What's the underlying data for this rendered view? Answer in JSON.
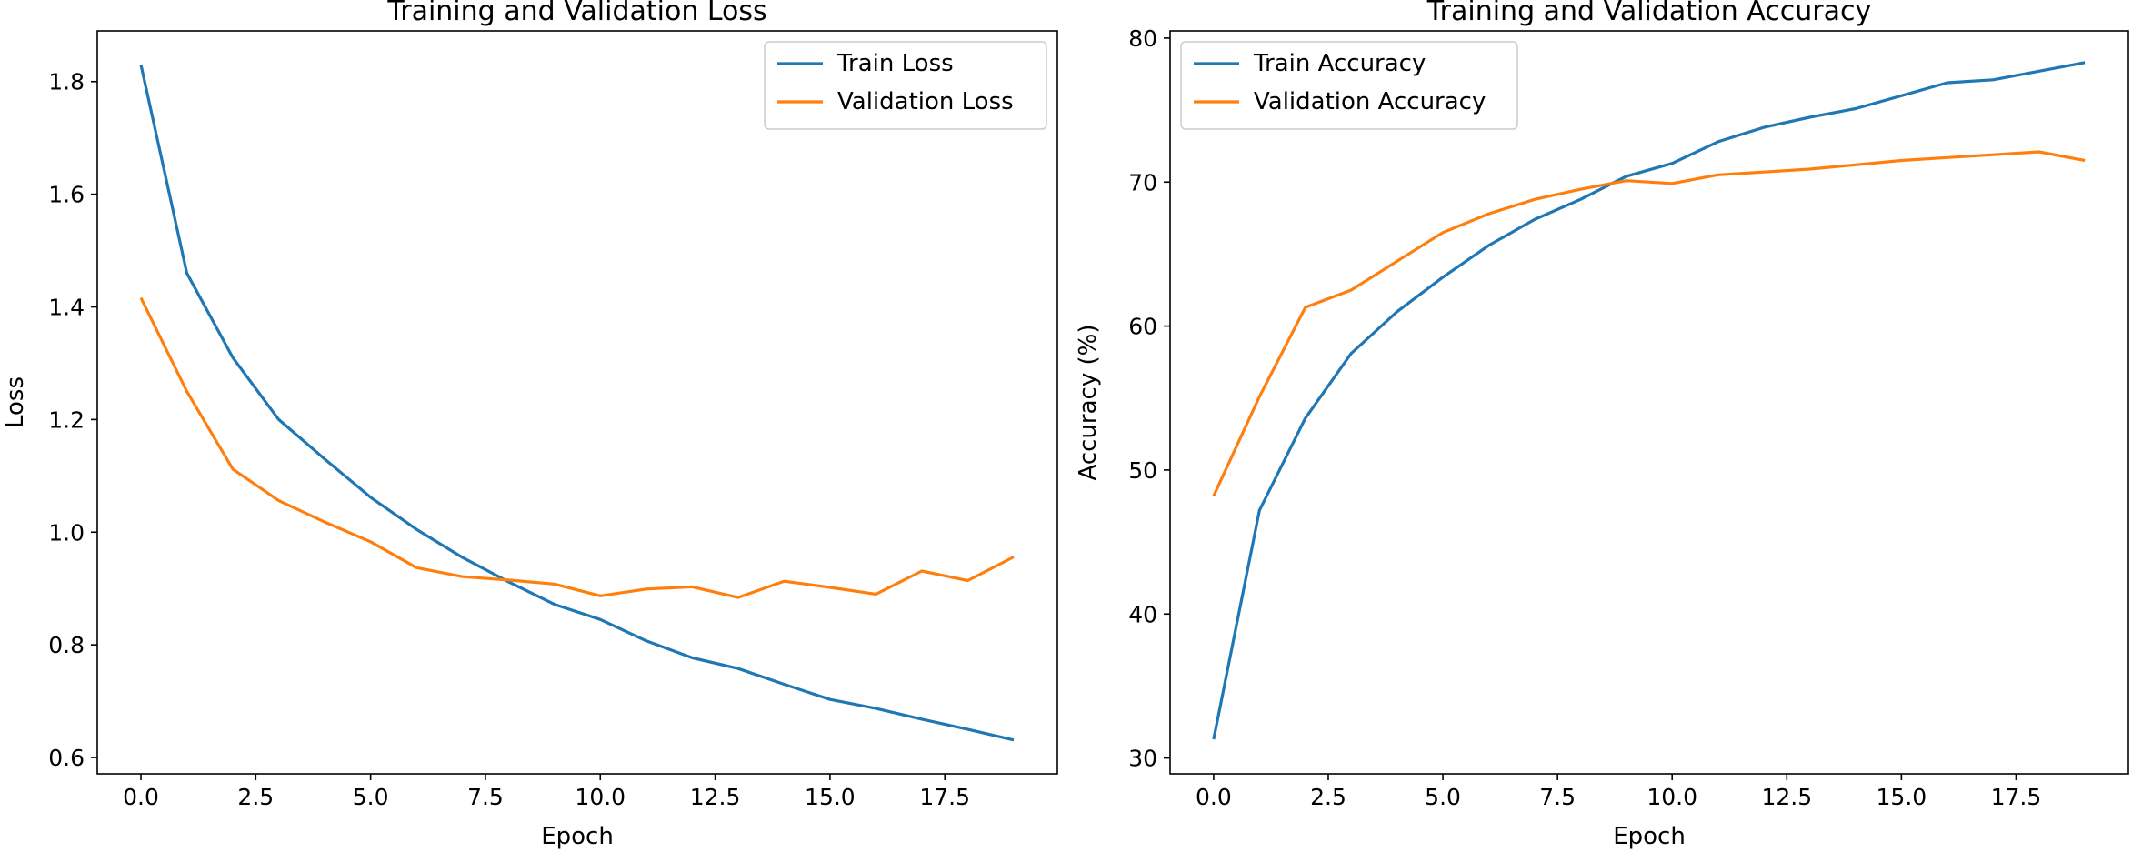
{
  "chart_data": [
    {
      "type": "line",
      "title": "Training and Validation Loss",
      "xlabel": "Epoch",
      "ylabel": "Loss",
      "xlim": [
        -0.95,
        19.95
      ],
      "ylim": [
        0.571,
        1.89
      ],
      "xticks": [
        0.0,
        2.5,
        5.0,
        7.5,
        10.0,
        12.5,
        15.0,
        17.5
      ],
      "xtick_labels": [
        "0.0",
        "2.5",
        "5.0",
        "7.5",
        "10.0",
        "12.5",
        "15.0",
        "17.5"
      ],
      "yticks": [
        0.6,
        0.8,
        1.0,
        1.2,
        1.4,
        1.6,
        1.8
      ],
      "ytick_labels": [
        "0.6",
        "0.8",
        "1.0",
        "1.2",
        "1.4",
        "1.6",
        "1.8"
      ],
      "grid": false,
      "legend_position": "upper right",
      "x": [
        0,
        1,
        2,
        3,
        4,
        5,
        6,
        7,
        8,
        9,
        10,
        11,
        12,
        13,
        14,
        15,
        16,
        17,
        18,
        19
      ],
      "series": [
        {
          "name": "Train Loss",
          "color": "#1f77b4",
          "values": [
            1.83,
            1.46,
            1.31,
            1.2,
            1.13,
            1.062,
            1.005,
            0.955,
            0.912,
            0.872,
            0.845,
            0.807,
            0.777,
            0.758,
            0.73,
            0.703,
            0.687,
            0.668,
            0.65,
            0.631
          ]
        },
        {
          "name": "Validation Loss",
          "color": "#ff7f0e",
          "values": [
            1.416,
            1.25,
            1.112,
            1.056,
            1.018,
            0.983,
            0.937,
            0.921,
            0.915,
            0.908,
            0.887,
            0.899,
            0.903,
            0.884,
            0.913,
            0.902,
            0.89,
            0.931,
            0.914,
            0.956
          ]
        }
      ]
    },
    {
      "type": "line",
      "title": "Training and Validation Accuracy",
      "xlabel": "Epoch",
      "ylabel": "Accuracy (%)",
      "xlim": [
        -0.95,
        19.95
      ],
      "ylim": [
        28.9,
        80.5
      ],
      "xticks": [
        0.0,
        2.5,
        5.0,
        7.5,
        10.0,
        12.5,
        15.0,
        17.5
      ],
      "xtick_labels": [
        "0.0",
        "2.5",
        "5.0",
        "7.5",
        "10.0",
        "12.5",
        "15.0",
        "17.5"
      ],
      "yticks": [
        30,
        40,
        50,
        60,
        70,
        80
      ],
      "ytick_labels": [
        "30",
        "40",
        "50",
        "60",
        "70",
        "80"
      ],
      "grid": false,
      "legend_position": "upper left",
      "x": [
        0,
        1,
        2,
        3,
        4,
        5,
        6,
        7,
        8,
        9,
        10,
        11,
        12,
        13,
        14,
        15,
        16,
        17,
        18,
        19
      ],
      "series": [
        {
          "name": "Train Accuracy",
          "color": "#1f77b4",
          "values": [
            31.3,
            47.2,
            53.6,
            58.1,
            61.0,
            63.4,
            65.6,
            67.4,
            68.8,
            70.4,
            71.3,
            72.8,
            73.8,
            74.5,
            75.1,
            76.0,
            76.9,
            77.1,
            77.7,
            78.3
          ]
        },
        {
          "name": "Validation Accuracy",
          "color": "#ff7f0e",
          "values": [
            48.2,
            55.1,
            61.3,
            62.5,
            64.5,
            66.5,
            67.8,
            68.8,
            69.5,
            70.1,
            69.9,
            70.5,
            70.7,
            70.9,
            71.2,
            71.5,
            71.7,
            71.9,
            72.1,
            71.5
          ]
        }
      ]
    }
  ]
}
